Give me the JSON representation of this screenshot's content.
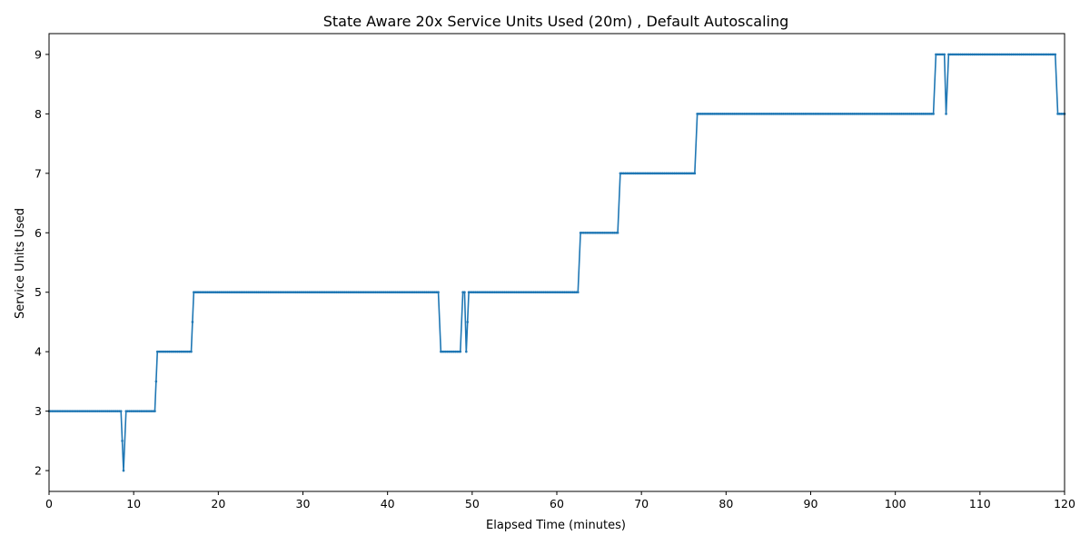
{
  "chart_data": {
    "type": "line",
    "title": "State Aware 20x Service Units Used (20m) , Default Autoscaling",
    "xlabel": "Elapsed Time (minutes)",
    "ylabel": "Service Units Used",
    "xlim": [
      0,
      120
    ],
    "ylim": [
      1.65,
      9.35
    ],
    "xticks": [
      0,
      10,
      20,
      30,
      40,
      50,
      60,
      70,
      80,
      90,
      100,
      110,
      120
    ],
    "yticks": [
      2,
      3,
      4,
      5,
      6,
      7,
      8,
      9
    ],
    "grid": false,
    "legend": "none",
    "series_color": "#1f77b4",
    "marker": "small-dot",
    "series": [
      {
        "x": [
          0,
          8.5,
          8.8,
          9.1,
          12.5,
          12.8,
          16.8,
          17.1,
          46.0,
          46.3,
          48.6,
          48.9,
          49.1,
          49.3,
          49.6,
          62.5,
          62.8,
          67.2,
          67.5,
          76.3,
          76.6,
          104.5,
          104.8,
          105.8,
          106.0,
          106.3,
          118.9,
          119.2,
          120
        ],
        "y": [
          3,
          3,
          2,
          3,
          3,
          4,
          4,
          5,
          5,
          4,
          4,
          5,
          5,
          4,
          5,
          5,
          6,
          6,
          7,
          7,
          8,
          8,
          9,
          9,
          8,
          9,
          9,
          8,
          8
        ]
      }
    ]
  }
}
